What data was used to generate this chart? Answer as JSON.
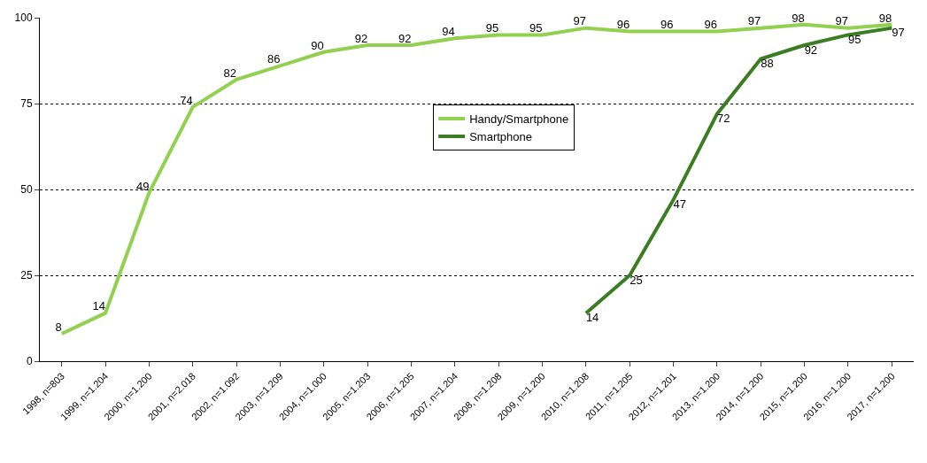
{
  "chart_data": {
    "type": "line",
    "categories": [
      "1998, n=803",
      "1999, n=1.204",
      "2000, n=1.200",
      "2001, n=2.018",
      "2002, n=1.092",
      "2003, n=1.209",
      "2004, n=1.000",
      "2005, n=1.203",
      "2006, n=1.205",
      "2007, n=1.204",
      "2008, n=1.208",
      "2009, n=1.200",
      "2010, n=1.208",
      "2011, n=1.205",
      "2012, n=1.201",
      "2013, n=1.200",
      "2014, n=1.200",
      "2015, n=1.200",
      "2016, n=1.200",
      "2017, n=1.200"
    ],
    "series": [
      {
        "name": "Handy/Smartphone",
        "color": "#92d050",
        "values": [
          8,
          14,
          49,
          74,
          82,
          86,
          90,
          92,
          92,
          94,
          95,
          95,
          97,
          96,
          96,
          96,
          97,
          98,
          97,
          98
        ]
      },
      {
        "name": "Smartphone",
        "color": "#3a7d22",
        "values": [
          null,
          null,
          null,
          null,
          null,
          null,
          null,
          null,
          null,
          null,
          null,
          null,
          14,
          25,
          47,
          72,
          88,
          92,
          95,
          97
        ]
      }
    ],
    "ylim": [
      0,
      100
    ],
    "yticks": [
      0,
      25,
      50,
      75,
      100
    ],
    "grid": "y",
    "legend": "center",
    "data_labels": true,
    "marker": "none",
    "line_style": "solid"
  }
}
